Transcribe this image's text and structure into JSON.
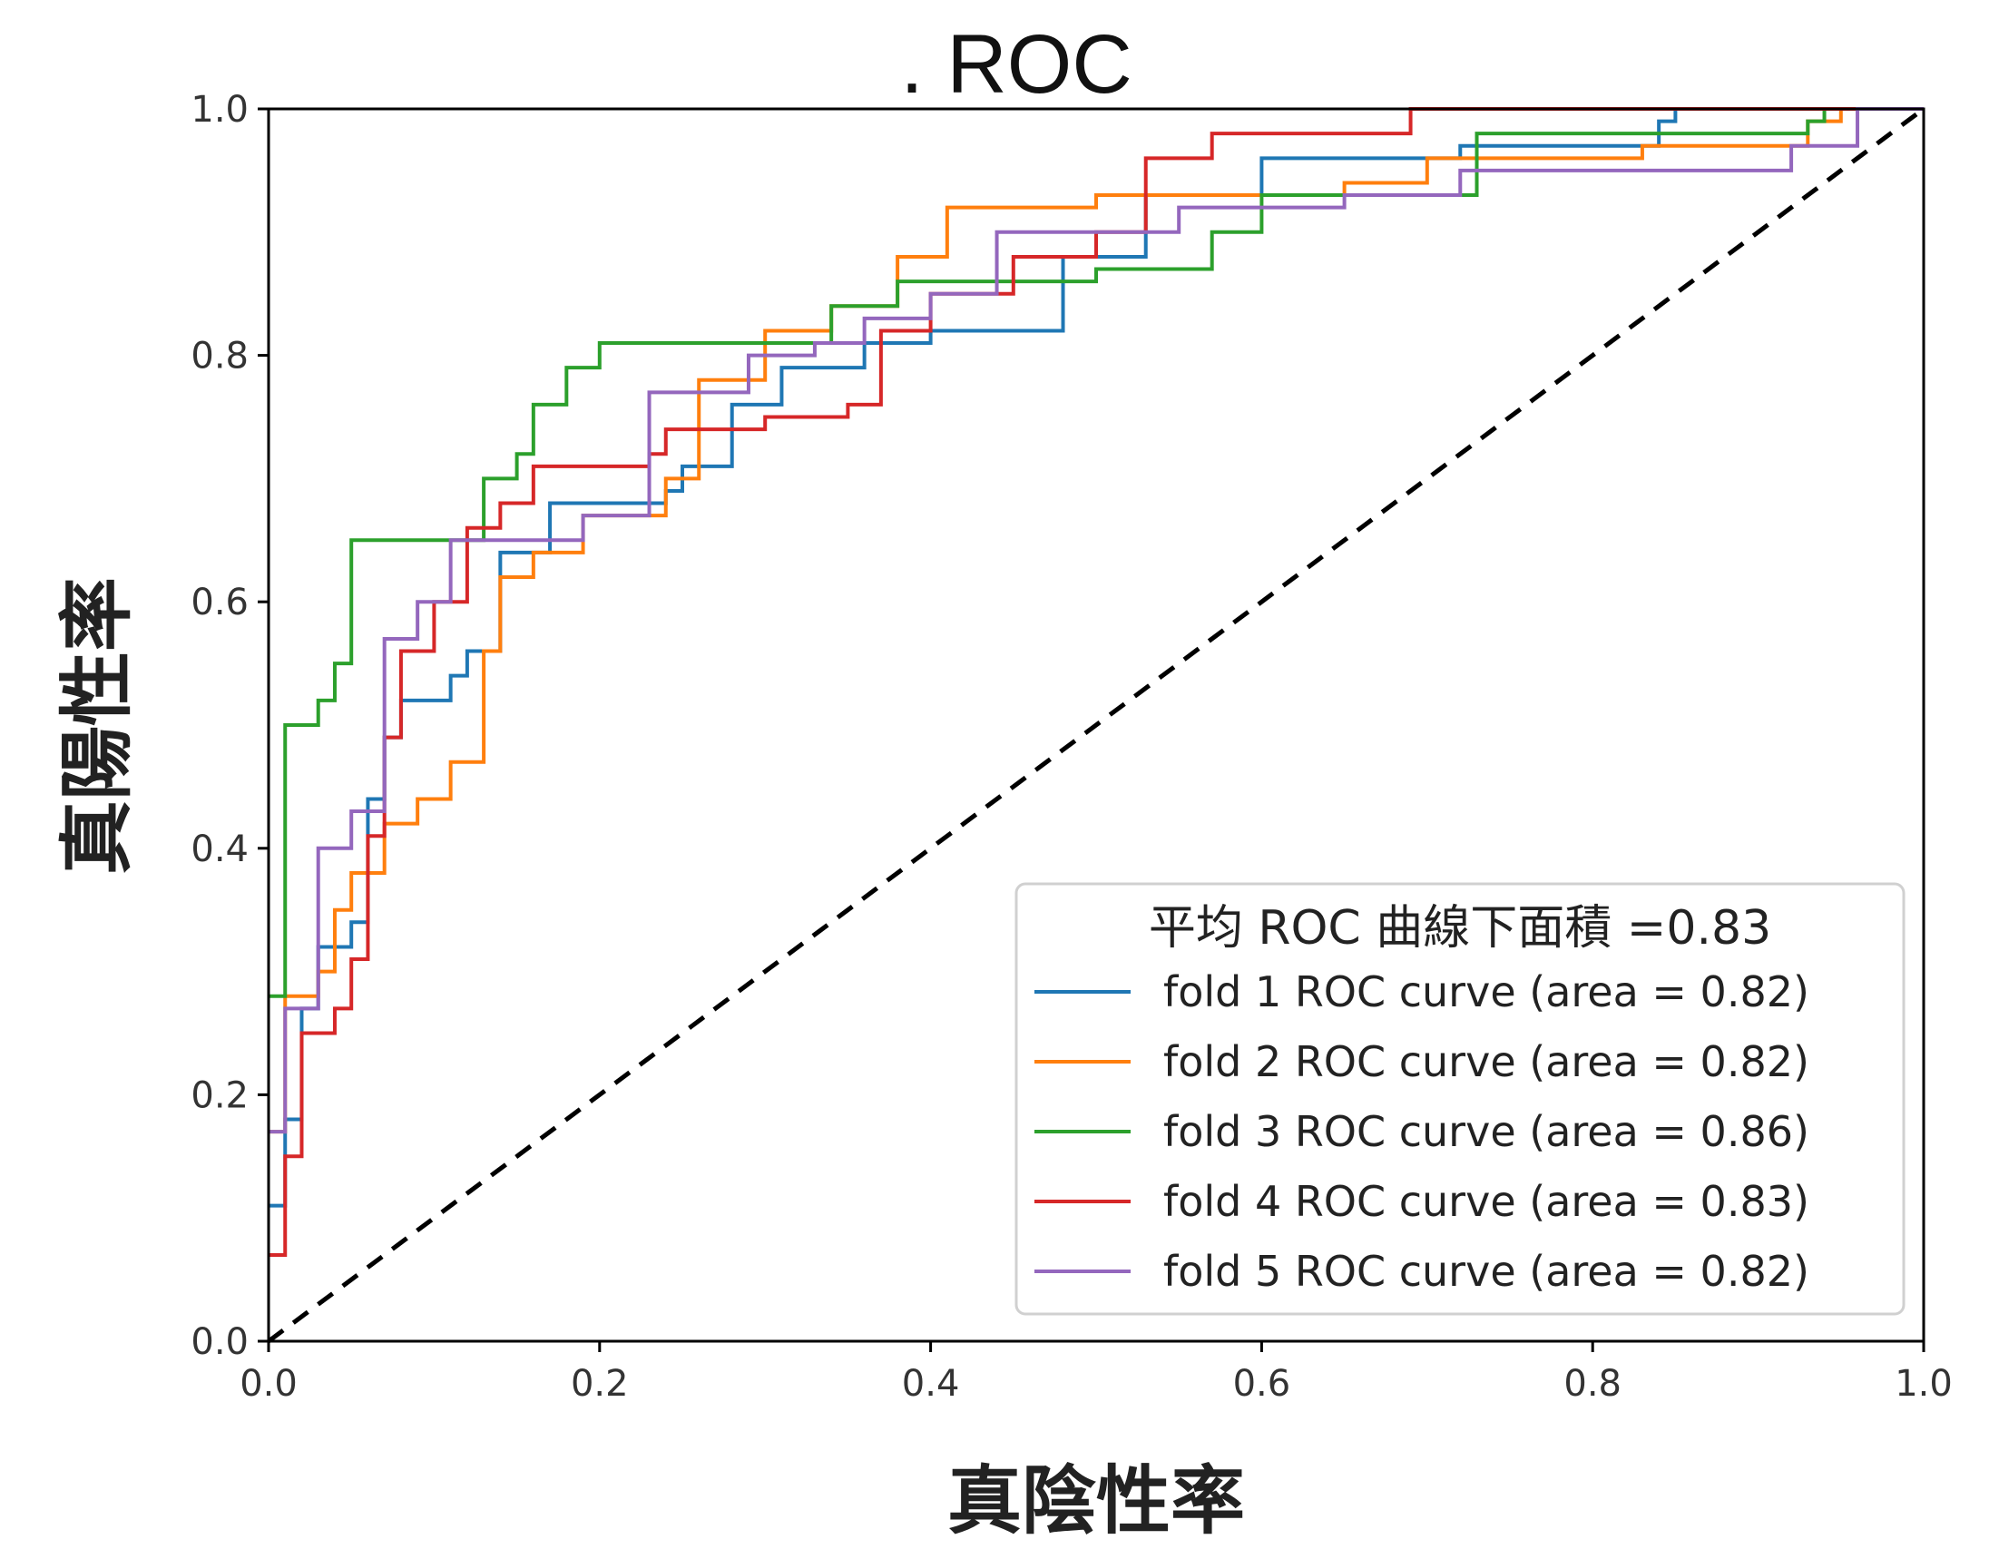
{
  "chart_data": {
    "type": "line",
    "title": ". ROC",
    "xlabel": "真陰性率",
    "ylabel": "真陽性率",
    "xlim": [
      0.0,
      1.0
    ],
    "ylim": [
      0.0,
      1.0
    ],
    "xticks": [
      "0.0",
      "0.2",
      "0.4",
      "0.6",
      "0.8",
      "1.0"
    ],
    "yticks": [
      "0.0",
      "0.2",
      "0.4",
      "0.6",
      "0.8",
      "1.0"
    ],
    "grid": false,
    "legend": {
      "placement": "lower-right",
      "title": "平均 ROC 曲線下面積 =0.83"
    },
    "diagonal": {
      "style": "dashed",
      "color": "#000000",
      "points": [
        [
          0,
          0
        ],
        [
          1,
          1
        ]
      ]
    },
    "series": [
      {
        "name": "fold 1 ROC curve (area = 0.82)",
        "color": "#1f77b4",
        "points": [
          [
            0,
            0.11
          ],
          [
            0.01,
            0.18
          ],
          [
            0.02,
            0.27
          ],
          [
            0.03,
            0.32
          ],
          [
            0.05,
            0.34
          ],
          [
            0.06,
            0.44
          ],
          [
            0.07,
            0.49
          ],
          [
            0.08,
            0.52
          ],
          [
            0.1,
            0.52
          ],
          [
            0.11,
            0.54
          ],
          [
            0.12,
            0.56
          ],
          [
            0.14,
            0.64
          ],
          [
            0.17,
            0.68
          ],
          [
            0.22,
            0.68
          ],
          [
            0.24,
            0.69
          ],
          [
            0.25,
            0.71
          ],
          [
            0.28,
            0.76
          ],
          [
            0.31,
            0.79
          ],
          [
            0.36,
            0.81
          ],
          [
            0.4,
            0.82
          ],
          [
            0.48,
            0.82
          ],
          [
            0.48,
            0.88
          ],
          [
            0.53,
            0.93
          ],
          [
            0.6,
            0.96
          ],
          [
            0.72,
            0.97
          ],
          [
            0.84,
            0.99
          ],
          [
            0.85,
            1.0
          ],
          [
            1.0,
            1.0
          ]
        ]
      },
      {
        "name": "fold 2 ROC curve (area = 0.82)",
        "color": "#ff7f0e",
        "points": [
          [
            0,
            0.17
          ],
          [
            0.01,
            0.28
          ],
          [
            0.03,
            0.3
          ],
          [
            0.04,
            0.35
          ],
          [
            0.05,
            0.38
          ],
          [
            0.07,
            0.42
          ],
          [
            0.09,
            0.44
          ],
          [
            0.11,
            0.47
          ],
          [
            0.13,
            0.56
          ],
          [
            0.14,
            0.62
          ],
          [
            0.16,
            0.64
          ],
          [
            0.19,
            0.67
          ],
          [
            0.24,
            0.7
          ],
          [
            0.26,
            0.78
          ],
          [
            0.3,
            0.82
          ],
          [
            0.34,
            0.84
          ],
          [
            0.38,
            0.88
          ],
          [
            0.41,
            0.92
          ],
          [
            0.5,
            0.93
          ],
          [
            0.65,
            0.94
          ],
          [
            0.7,
            0.96
          ],
          [
            0.83,
            0.97
          ],
          [
            0.93,
            0.99
          ],
          [
            0.95,
            1.0
          ],
          [
            1.0,
            1.0
          ]
        ]
      },
      {
        "name": "fold 3 ROC curve (area = 0.86)",
        "color": "#2ca02c",
        "points": [
          [
            0,
            0.28
          ],
          [
            0.01,
            0.5
          ],
          [
            0.03,
            0.52
          ],
          [
            0.04,
            0.55
          ],
          [
            0.05,
            0.65
          ],
          [
            0.12,
            0.65
          ],
          [
            0.13,
            0.7
          ],
          [
            0.15,
            0.72
          ],
          [
            0.16,
            0.76
          ],
          [
            0.18,
            0.79
          ],
          [
            0.2,
            0.81
          ],
          [
            0.31,
            0.81
          ],
          [
            0.34,
            0.84
          ],
          [
            0.38,
            0.86
          ],
          [
            0.5,
            0.87
          ],
          [
            0.57,
            0.9
          ],
          [
            0.6,
            0.93
          ],
          [
            0.71,
            0.93
          ],
          [
            0.73,
            0.98
          ],
          [
            0.93,
            0.99
          ],
          [
            0.94,
            1.0
          ],
          [
            1.0,
            1.0
          ]
        ]
      },
      {
        "name": "fold 4 ROC curve (area = 0.83)",
        "color": "#d62728",
        "points": [
          [
            0,
            0.07
          ],
          [
            0.01,
            0.15
          ],
          [
            0.02,
            0.25
          ],
          [
            0.04,
            0.27
          ],
          [
            0.05,
            0.31
          ],
          [
            0.06,
            0.41
          ],
          [
            0.07,
            0.49
          ],
          [
            0.08,
            0.56
          ],
          [
            0.1,
            0.6
          ],
          [
            0.12,
            0.66
          ],
          [
            0.14,
            0.68
          ],
          [
            0.16,
            0.71
          ],
          [
            0.23,
            0.72
          ],
          [
            0.24,
            0.74
          ],
          [
            0.3,
            0.75
          ],
          [
            0.35,
            0.76
          ],
          [
            0.37,
            0.82
          ],
          [
            0.4,
            0.85
          ],
          [
            0.45,
            0.88
          ],
          [
            0.5,
            0.9
          ],
          [
            0.53,
            0.96
          ],
          [
            0.57,
            0.98
          ],
          [
            0.69,
            1.0
          ],
          [
            1.0,
            1.0
          ]
        ]
      },
      {
        "name": "fold 5 ROC curve (area = 0.82)",
        "color": "#9467bd",
        "points": [
          [
            0,
            0.17
          ],
          [
            0.01,
            0.27
          ],
          [
            0.03,
            0.4
          ],
          [
            0.05,
            0.43
          ],
          [
            0.07,
            0.57
          ],
          [
            0.09,
            0.6
          ],
          [
            0.11,
            0.65
          ],
          [
            0.19,
            0.67
          ],
          [
            0.23,
            0.77
          ],
          [
            0.29,
            0.8
          ],
          [
            0.33,
            0.81
          ],
          [
            0.36,
            0.83
          ],
          [
            0.4,
            0.85
          ],
          [
            0.44,
            0.9
          ],
          [
            0.55,
            0.92
          ],
          [
            0.65,
            0.93
          ],
          [
            0.72,
            0.95
          ],
          [
            0.92,
            0.97
          ],
          [
            0.96,
            1.0
          ],
          [
            1.0,
            1.0
          ]
        ]
      }
    ]
  }
}
